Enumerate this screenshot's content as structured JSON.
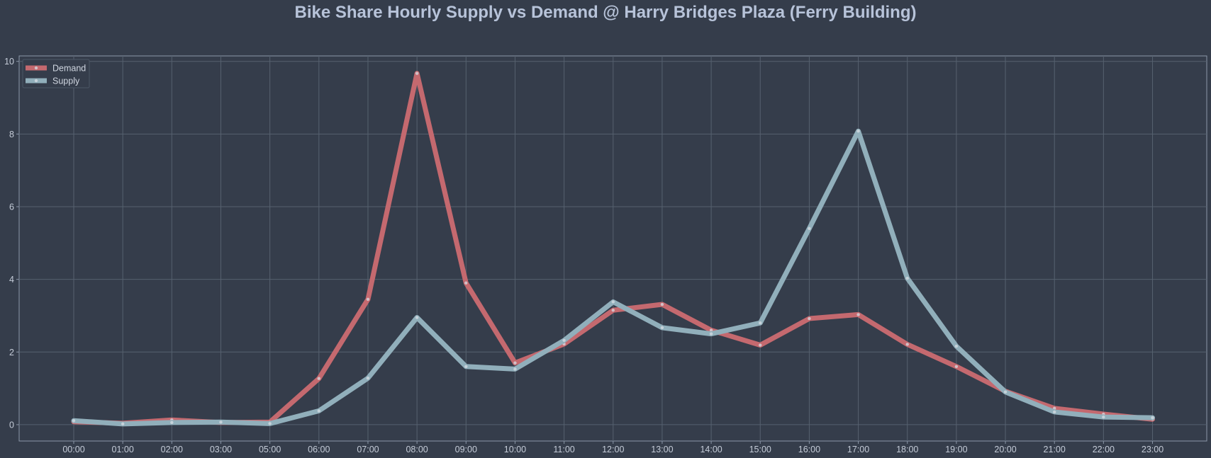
{
  "chart_data": {
    "type": "line",
    "title": "Bike Share Hourly Supply vs Demand @ Harry Bridges Plaza (Ferry Building)",
    "xlabel": "",
    "ylabel": "",
    "categories": [
      "00:00",
      "01:00",
      "02:00",
      "03:00",
      "05:00",
      "06:00",
      "07:00",
      "08:00",
      "09:00",
      "10:00",
      "11:00",
      "12:00",
      "13:00",
      "14:00",
      "15:00",
      "16:00",
      "17:00",
      "18:00",
      "19:00",
      "20:00",
      "21:00",
      "22:00",
      "23:00"
    ],
    "yticks": [
      0,
      2,
      4,
      6,
      8,
      10
    ],
    "ylim": [
      -0.45,
      10.15
    ],
    "grid": true,
    "legend_position": "top-left",
    "series": [
      {
        "name": "Demand",
        "color": "#c4696f",
        "values": [
          0.08,
          0.04,
          0.13,
          0.06,
          0.07,
          1.27,
          3.45,
          9.67,
          3.9,
          1.7,
          2.22,
          3.15,
          3.31,
          2.6,
          2.19,
          2.92,
          3.03,
          2.21,
          1.6,
          0.92,
          0.45,
          0.29,
          0.15
        ]
      },
      {
        "name": "Supply",
        "color": "#91afbb",
        "values": [
          0.11,
          0.02,
          0.06,
          0.07,
          0.03,
          0.38,
          1.28,
          2.95,
          1.6,
          1.53,
          2.32,
          3.38,
          2.67,
          2.5,
          2.8,
          5.4,
          8.08,
          4.03,
          2.16,
          0.9,
          0.35,
          0.21,
          0.19
        ]
      }
    ]
  }
}
